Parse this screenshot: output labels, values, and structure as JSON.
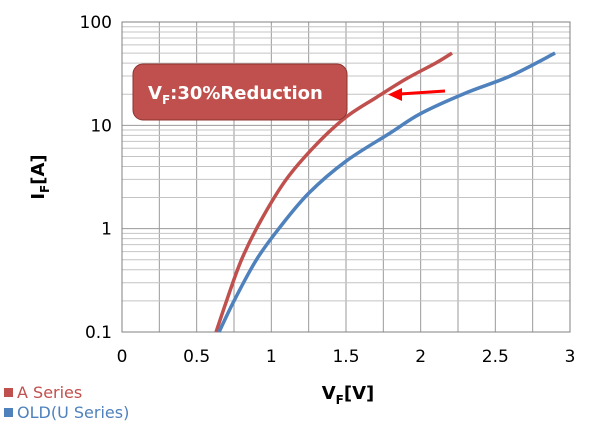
{
  "chart_data": {
    "type": "line",
    "xlabel": {
      "main": "V",
      "sub": "F",
      "suffix": "[V]"
    },
    "ylabel": {
      "main": "I",
      "sub": "F",
      "suffix": "[A]"
    },
    "xlim": [
      0,
      3
    ],
    "ylim": [
      0.1,
      100
    ],
    "y_scale": "log",
    "grid": true,
    "x_ticks": [
      "0",
      "0.5",
      "1",
      "1.5",
      "2",
      "2.5",
      "3"
    ],
    "y_ticks": [
      "0.1",
      "1",
      "10",
      "100"
    ],
    "annotation": {
      "main": "V",
      "sub": "F",
      "suffix": ":30%Reduction"
    },
    "legend_position": "bottom-left",
    "series": [
      {
        "name": "A Series",
        "color": "#c0504d",
        "points": [
          [
            0.63,
            0.1
          ],
          [
            0.7,
            0.2
          ],
          [
            0.8,
            0.5
          ],
          [
            0.93,
            1.2
          ],
          [
            1.1,
            3.0
          ],
          [
            1.3,
            6.5
          ],
          [
            1.5,
            12.0
          ],
          [
            1.7,
            18.5
          ],
          [
            1.9,
            28.0
          ],
          [
            2.1,
            40.0
          ],
          [
            2.21,
            50.0
          ]
        ]
      },
      {
        "name": "OLD(U Series)",
        "color": "#4f81bd",
        "points": [
          [
            0.65,
            0.1
          ],
          [
            0.75,
            0.2
          ],
          [
            0.9,
            0.5
          ],
          [
            1.05,
            1.0
          ],
          [
            1.25,
            2.2
          ],
          [
            1.5,
            4.5
          ],
          [
            1.8,
            8.5
          ],
          [
            2.0,
            13.0
          ],
          [
            2.3,
            20.5
          ],
          [
            2.6,
            30.0
          ],
          [
            2.9,
            50.0
          ]
        ]
      }
    ]
  }
}
